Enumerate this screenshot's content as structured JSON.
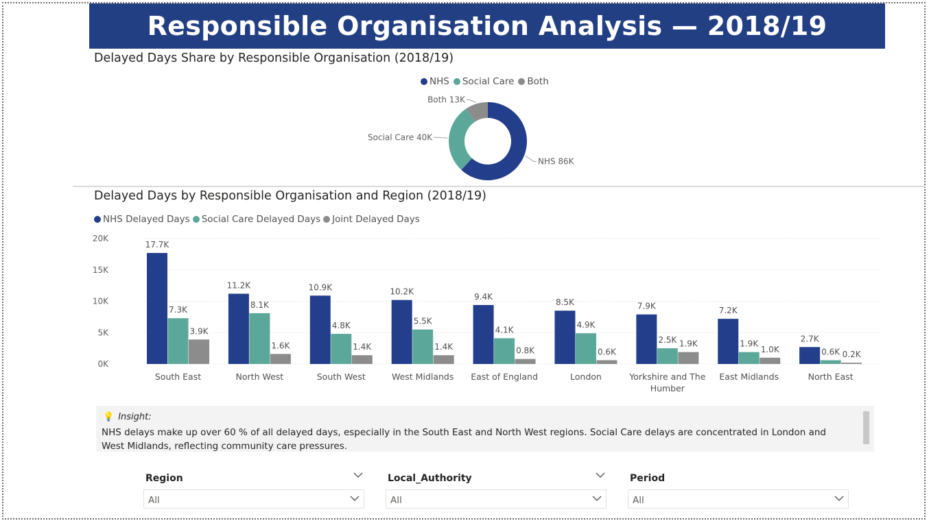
{
  "report_title": "Responsible Organisation Analysis — 2018/19",
  "donut": {
    "title": "Delayed Days Share by Responsible Organisation (2018/19)",
    "legend": [
      {
        "name": "NHS",
        "color": "#233f8b"
      },
      {
        "name": "Social Care",
        "color": "#5ba89a"
      },
      {
        "name": "Both",
        "color": "#8c8c8c"
      }
    ],
    "labels": [
      "NHS 86K",
      "Social Care 40K",
      "Both 13K"
    ]
  },
  "bar": {
    "title": "Delayed Days by Responsible Organisation and Region (2018/19)",
    "legend": [
      "NHS Delayed Days",
      "Social Care Delayed Days",
      "Joint Delayed Days"
    ],
    "y_ticks": [
      "20K",
      "15K",
      "10K",
      "5K",
      "0K"
    ]
  },
  "chart_data": [
    {
      "type": "pie",
      "title": "Delayed Days Share by Responsible Organisation (2018/19)",
      "categories": [
        "NHS",
        "Social Care",
        "Both"
      ],
      "values": [
        86000,
        40000,
        13000
      ],
      "data_labels": [
        "NHS 86K",
        "Social Care 40K",
        "Both 13K"
      ],
      "colors": [
        "#233f8b",
        "#5ba89a",
        "#8c8c8c"
      ],
      "donut": true,
      "legend_position": "top-center"
    },
    {
      "type": "bar",
      "title": "Delayed Days by Responsible Organisation and Region (2018/19)",
      "categories": [
        "South East",
        "North West",
        "South West",
        "West Midlands",
        "East of England",
        "London",
        "Yorkshire and The Humber",
        "East Midlands",
        "North East"
      ],
      "series": [
        {
          "name": "NHS Delayed Days",
          "color": "#233f8b",
          "values": [
            17700,
            11200,
            10900,
            10200,
            9400,
            8500,
            7900,
            7200,
            2700
          ],
          "labels": [
            "17.7K",
            "11.2K",
            "10.9K",
            "10.2K",
            "9.4K",
            "8.5K",
            "7.9K",
            "7.2K",
            "2.7K"
          ]
        },
        {
          "name": "Social Care Delayed Days",
          "color": "#5ba89a",
          "values": [
            7300,
            8100,
            4800,
            5500,
            4100,
            4900,
            2500,
            1900,
            600
          ],
          "labels": [
            "7.3K",
            "8.1K",
            "4.8K",
            "5.5K",
            "4.1K",
            "4.9K",
            "2.5K",
            "1.9K",
            "0.6K"
          ]
        },
        {
          "name": "Joint Delayed Days",
          "color": "#8c8c8c",
          "values": [
            3900,
            1600,
            1400,
            1400,
            800,
            600,
            1900,
            1000,
            200
          ],
          "labels": [
            "3.9K",
            "1.6K",
            "1.4K",
            "1.4K",
            "0.8K",
            "0.6K",
            "1.9K",
            "1.0K",
            "0.2K"
          ]
        }
      ],
      "ylim": [
        0,
        20000
      ],
      "y_tick_labels": [
        "0K",
        "5K",
        "10K",
        "15K",
        "20K"
      ],
      "grid": true,
      "legend_position": "top-left"
    }
  ],
  "insight": {
    "label": "Insight:",
    "text": "NHS delays make up over 60 % of all delayed days, especially in the South East and North West regions. Social Care delays are concentrated in London and West Midlands, reflecting community care pressures."
  },
  "slicers": [
    {
      "header": "Region",
      "value": "All"
    },
    {
      "header": "Local_Authority",
      "value": "All"
    },
    {
      "header": "Period",
      "value": "All"
    }
  ]
}
